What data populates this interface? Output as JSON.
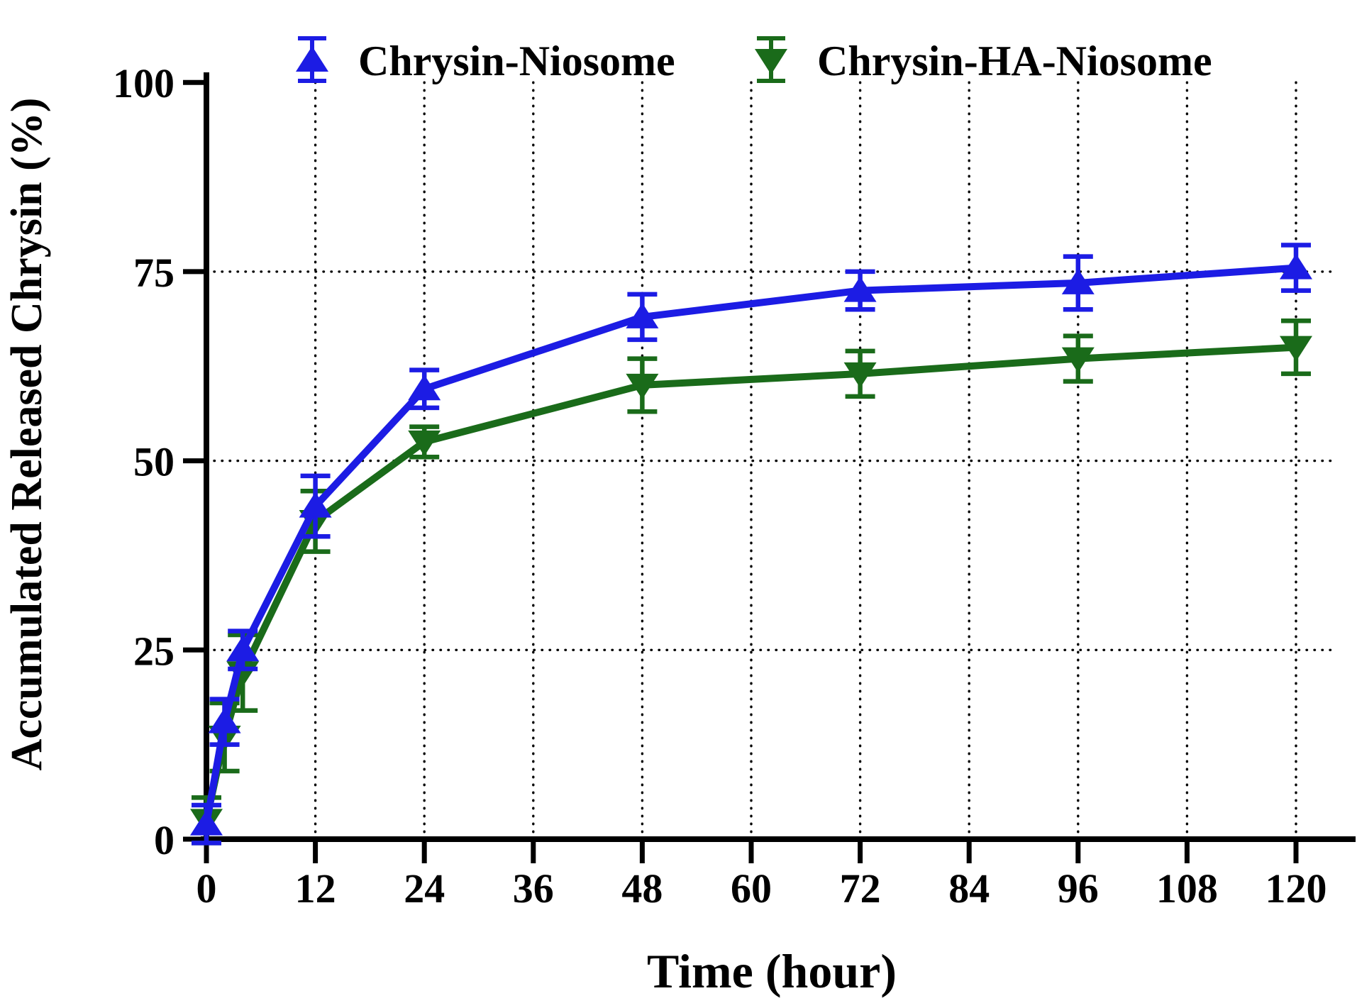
{
  "figure": {
    "background": "#ffffff",
    "text_color": "#000000"
  },
  "chart_data": {
    "type": "line",
    "title": "",
    "xlabel": "Time (hour)",
    "ylabel": "Accumulated Released Chrysin (%)",
    "xlim": [
      0,
      126
    ],
    "ylim": [
      0,
      100
    ],
    "x_ticks": [
      0,
      12,
      24,
      36,
      48,
      60,
      72,
      84,
      96,
      108,
      120
    ],
    "y_ticks": [
      0,
      25,
      50,
      75,
      100
    ],
    "grid": {
      "horizontal_lines_at": [
        25,
        50,
        75
      ],
      "vertical_lines_at": [
        12,
        24,
        36,
        48,
        60,
        72,
        84,
        96,
        108,
        120
      ],
      "style": "dotted",
      "color": "#000000"
    },
    "legend_position": "top",
    "x": [
      0,
      2,
      4,
      12,
      24,
      48,
      72,
      96,
      120
    ],
    "series": [
      {
        "name": "Chrysin-Niosome",
        "color": "#1c1ce4",
        "marker": "triangle-up",
        "values": [
          2,
          15.5,
          25,
          44,
          59.5,
          69,
          72.5,
          73.5,
          75.5
        ],
        "errors": [
          2.5,
          3,
          2.5,
          4,
          2.5,
          3,
          2.5,
          3.5,
          3
        ]
      },
      {
        "name": "Chrysin-HA-Niosome",
        "color": "#1a6b1a",
        "marker": "triangle-down",
        "values": [
          2.5,
          13.5,
          22,
          42,
          52.5,
          60,
          61.5,
          63.5,
          65
        ],
        "errors": [
          3,
          4.5,
          5,
          4,
          2,
          3.5,
          3,
          3,
          3.5
        ]
      }
    ]
  }
}
